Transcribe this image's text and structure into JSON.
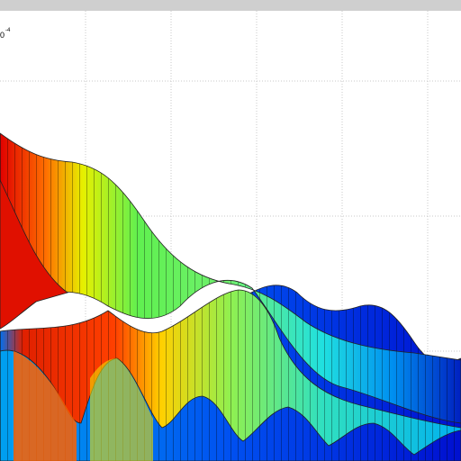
{
  "axis_exponent": {
    "base": "0",
    "exponent": "-4"
  }
}
